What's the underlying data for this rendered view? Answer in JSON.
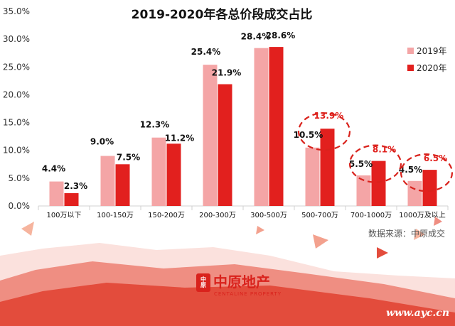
{
  "chart_data": {
    "type": "bar",
    "title": "2019-2020年各总价段成交占比",
    "categories": [
      "100万以下",
      "100-150万",
      "150-200万",
      "200-300万",
      "300-500万",
      "500-700万",
      "700-1000万",
      "1000万及以上"
    ],
    "series": [
      {
        "name": "2019年",
        "color": "#f4a5a6",
        "values": [
          4.4,
          9.0,
          12.3,
          25.4,
          28.4,
          10.5,
          5.5,
          4.5
        ]
      },
      {
        "name": "2020年",
        "color": "#e2201e",
        "values": [
          2.3,
          7.5,
          11.2,
          21.9,
          28.6,
          13.9,
          8.1,
          6.5
        ]
      }
    ],
    "value_labels": {
      "2019年": [
        "4.4%",
        "9.0%",
        "12.3%",
        "25.4%",
        "28.4%",
        "10.5%",
        "5.5%",
        "4.5%"
      ],
      "2020年": [
        "2.3%",
        "7.5%",
        "11.2%",
        "21.9%",
        "28.6%",
        "13.9%",
        "8.1%",
        "6.5%"
      ]
    },
    "highlighted_categories": [
      "500-700万",
      "700-1000万",
      "1000万及以上"
    ],
    "yticks": [
      "0.0%",
      "5.0%",
      "10.0%",
      "15.0%",
      "20.0%",
      "25.0%",
      "30.0%",
      "35.0%"
    ],
    "ylim": [
      0,
      35
    ],
    "legend_position": "right",
    "grid": false
  },
  "source_note": "数据来源：中原成交",
  "brand": {
    "name": "中原地产",
    "subtitle": "CENTALINE PROPERTY",
    "seal": "中原"
  },
  "watermark": "www.ayc.cn",
  "colors": {
    "accent": "#e2201e",
    "light": "#f4a5a6",
    "banner": "#e34c3c"
  }
}
